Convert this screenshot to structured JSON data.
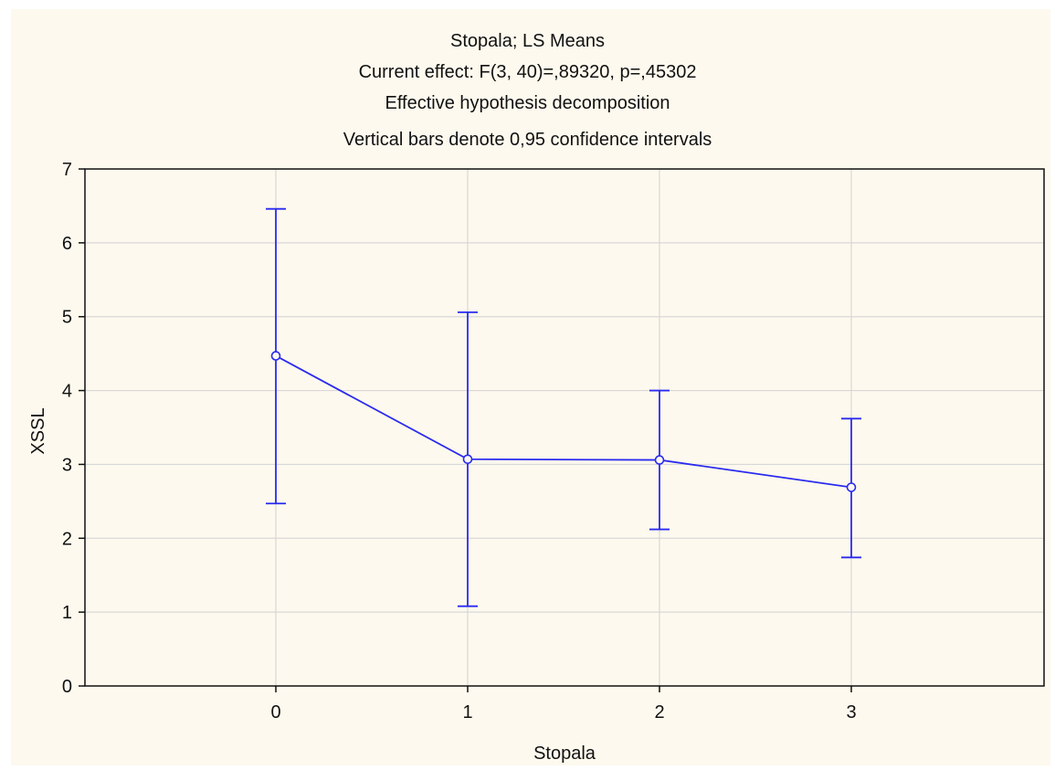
{
  "chart_data": {
    "type": "line",
    "title_lines": [
      "Stopala; LS Means",
      "Current effect: F(3, 40)=,89320, p=,45302",
      "Effective hypothesis decomposition",
      "Vertical bars denote 0,95 confidence intervals"
    ],
    "xlabel": "Stopala",
    "ylabel": "XSSL",
    "categories": [
      "0",
      "1",
      "2",
      "3"
    ],
    "x_tick_labels": [
      "0",
      "1",
      "2",
      "3"
    ],
    "y_tick_labels": [
      "0",
      "1",
      "2",
      "3",
      "4",
      "5",
      "6",
      "7"
    ],
    "ylim": [
      0,
      7
    ],
    "grid": true,
    "series": [
      {
        "values": [
          4.47,
          3.07,
          3.06,
          2.69
        ],
        "ci_lower": [
          2.47,
          1.08,
          2.12,
          1.74
        ],
        "ci_upper": [
          6.46,
          5.06,
          4.0,
          3.62
        ],
        "color": "#2a2af0"
      }
    ]
  }
}
